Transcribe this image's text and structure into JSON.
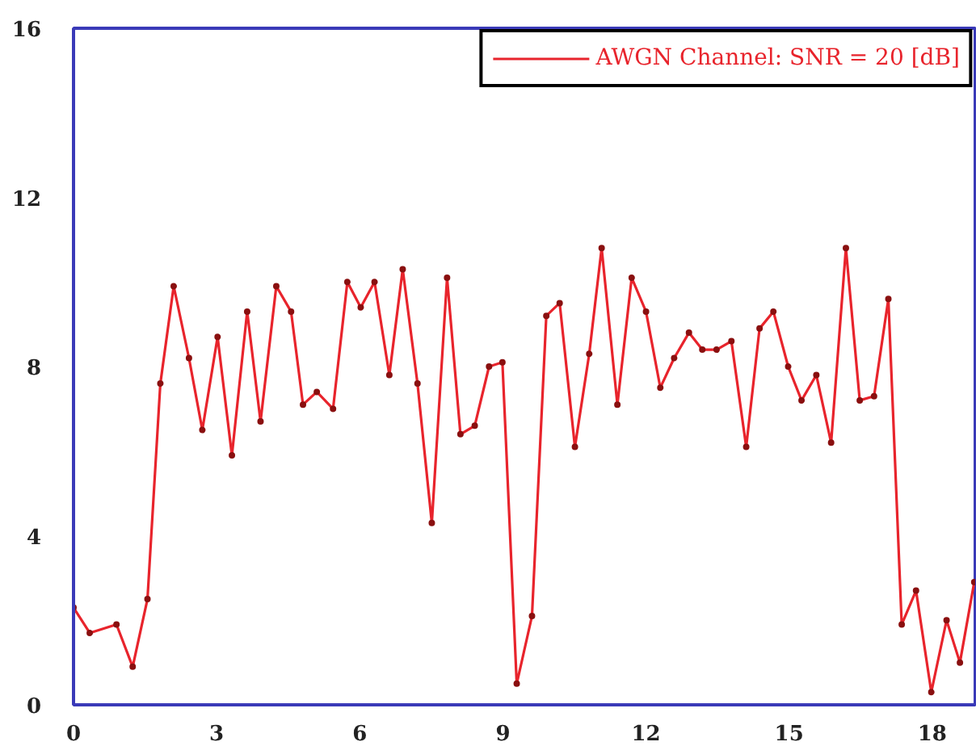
{
  "chart_data": {
    "type": "line",
    "legend": "top right",
    "marker": "circle",
    "line_style": "solid",
    "xlim": [
      0,
      18.9
    ],
    "ylim": [
      0,
      16
    ],
    "xticks": [
      0,
      3,
      6,
      9,
      12,
      15,
      18
    ],
    "yticks": [
      0,
      4,
      8,
      12,
      16
    ],
    "series": [
      {
        "name": "AWGN Channel: SNR = 20 [dB]",
        "color": "#e8242c",
        "x": [
          0,
          0.34,
          0.9,
          1.24,
          1.55,
          1.82,
          2.1,
          2.42,
          2.7,
          3.02,
          3.32,
          3.64,
          3.92,
          4.25,
          4.56,
          4.81,
          5.1,
          5.44,
          5.74,
          6.02,
          6.31,
          6.62,
          6.9,
          7.21,
          7.51,
          7.83,
          8.11,
          8.41,
          8.71,
          8.99,
          9.29,
          9.61,
          9.91,
          10.19,
          10.51,
          10.81,
          11.07,
          11.4,
          11.7,
          12.0,
          12.3,
          12.59,
          12.9,
          13.18,
          13.48,
          13.79,
          14.1,
          14.38,
          14.67,
          14.98,
          15.26,
          15.57,
          15.88,
          16.19,
          16.48,
          16.78,
          17.08,
          17.36,
          17.66,
          17.98,
          18.3,
          18.58,
          18.88
        ],
        "values": [
          2.3,
          1.7,
          1.9,
          0.9,
          2.5,
          7.6,
          9.9,
          8.2,
          6.5,
          8.7,
          5.9,
          9.3,
          6.7,
          9.9,
          9.3,
          7.1,
          7.4,
          7.0,
          10.0,
          9.4,
          10.0,
          7.8,
          10.3,
          7.6,
          4.3,
          10.1,
          6.4,
          6.6,
          8.0,
          8.1,
          0.5,
          2.1,
          9.2,
          9.5,
          6.1,
          8.3,
          10.8,
          7.1,
          10.1,
          9.3,
          7.5,
          8.2,
          8.8,
          8.4,
          8.4,
          8.6,
          6.1,
          8.9,
          9.3,
          8.0,
          7.2,
          7.8,
          6.2,
          10.8,
          7.2,
          7.3,
          9.6,
          1.9,
          2.7,
          0.3,
          2.0,
          1.0,
          2.9
        ]
      }
    ]
  }
}
